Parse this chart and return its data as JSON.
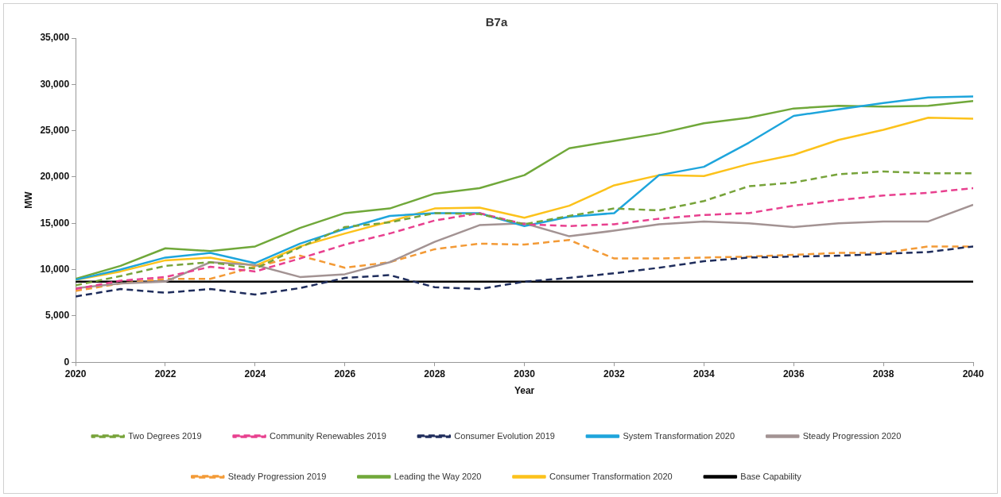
{
  "chart_data": {
    "type": "line",
    "title": "B7a",
    "xlabel": "Year",
    "ylabel": "MW",
    "x": [
      2020,
      2021,
      2022,
      2023,
      2024,
      2025,
      2026,
      2027,
      2028,
      2029,
      2030,
      2031,
      2032,
      2033,
      2034,
      2035,
      2036,
      2037,
      2038,
      2039,
      2040
    ],
    "xlim": [
      2020,
      2040
    ],
    "xticks": [
      2020,
      2022,
      2024,
      2026,
      2028,
      2030,
      2032,
      2034,
      2036,
      2038,
      2040
    ],
    "ylim": [
      0,
      35000
    ],
    "yticks": [
      0,
      {
        "value": 5000,
        "label": "5,000"
      },
      {
        "value": 10000,
        "label": "10,000"
      },
      {
        "value": 15000,
        "label": "15,000"
      },
      {
        "value": 20000,
        "label": "20,000"
      },
      {
        "value": 25000,
        "label": "25,000"
      },
      {
        "value": 30000,
        "label": "30,000"
      },
      {
        "value": 35000,
        "label": "35,000"
      }
    ],
    "grid": false,
    "legend": "bottom",
    "marker": "none",
    "series": [
      {
        "name": "Two Degrees 2019",
        "color": "#77a33a",
        "line_style": "dashed",
        "values": [
          8300,
          9300,
          10400,
          10800,
          10100,
          12400,
          14600,
          15100,
          16100,
          16000,
          14900,
          15800,
          16600,
          16400,
          17400,
          19000,
          19400,
          20300,
          20600,
          20400,
          20400
        ]
      },
      {
        "name": "Community Renewables 2019",
        "color": "#e8408f",
        "line_style": "dashed",
        "values": [
          7900,
          8800,
          9200,
          10300,
          9800,
          11200,
          12700,
          13900,
          15300,
          16100,
          14900,
          14700,
          14900,
          15500,
          15900,
          16100,
          16900,
          17500,
          18000,
          18300,
          18800
        ]
      },
      {
        "name": "Consumer Evolution 2019",
        "color": "#1f2d5c",
        "line_style": "dashed",
        "values": [
          7100,
          7900,
          7500,
          7900,
          7300,
          8000,
          9100,
          9400,
          8100,
          7900,
          8700,
          9100,
          9600,
          10200,
          10900,
          11300,
          11400,
          11500,
          11700,
          11900,
          12500
        ]
      },
      {
        "name": "System Transformation 2020",
        "color": "#1ea5dc",
        "line_style": "solid",
        "values": [
          8900,
          10000,
          11300,
          11800,
          10700,
          12800,
          14400,
          15800,
          16100,
          16100,
          14700,
          15700,
          16100,
          20200,
          21100,
          23700,
          26600,
          27300,
          28000,
          28600,
          28700
        ]
      },
      {
        "name": "Steady Progression 2020",
        "color": "#a39393",
        "line_style": "solid",
        "values": [
          8000,
          8500,
          8700,
          10800,
          10500,
          9200,
          9500,
          10800,
          13000,
          14800,
          15000,
          13600,
          14200,
          14900,
          15200,
          15000,
          14600,
          15000,
          15200,
          15200,
          17000
        ]
      },
      {
        "name": "Steady Progression 2019",
        "color": "#f39a36",
        "line_style": "dashed",
        "values": [
          7700,
          8500,
          9000,
          9000,
          10300,
          11500,
          10200,
          10800,
          12200,
          12800,
          12700,
          13200,
          11200,
          11200,
          11300,
          11400,
          11600,
          11800,
          11800,
          12500,
          12500
        ]
      },
      {
        "name": "Leading the Way 2020",
        "color": "#70a83a",
        "line_style": "solid",
        "values": [
          9000,
          10400,
          12300,
          12000,
          12500,
          14500,
          16100,
          16600,
          18200,
          18800,
          20200,
          23100,
          23900,
          24700,
          25800,
          26400,
          27400,
          27700,
          27600,
          27700,
          28200
        ]
      },
      {
        "name": "Consumer Transformation 2020",
        "color": "#fcc21b",
        "line_style": "solid",
        "values": [
          8900,
          9800,
          11000,
          11300,
          10400,
          12500,
          13900,
          15200,
          16600,
          16700,
          15600,
          16900,
          19100,
          20200,
          20100,
          21400,
          22400,
          24000,
          25100,
          26400,
          26300
        ]
      },
      {
        "name": "Base Capability",
        "color": "#000000",
        "line_style": "solid",
        "values": [
          8700,
          8700,
          8700,
          8700,
          8700,
          8700,
          8700,
          8700,
          8700,
          8700,
          8700,
          8700,
          8700,
          8700,
          8700,
          8700,
          8700,
          8700,
          8700,
          8700,
          8700
        ]
      }
    ]
  }
}
